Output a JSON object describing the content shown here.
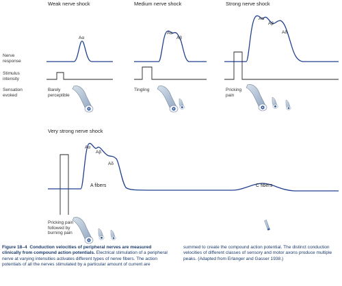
{
  "panels": [
    {
      "title": "Weak nerve shock",
      "sensation": [
        "Barely",
        "perceptible"
      ],
      "peaks": [
        "Aα"
      ]
    },
    {
      "title": "Medium nerve shock",
      "sensation": [
        "Tingling"
      ],
      "peaks": [
        "Aα",
        "Aβ"
      ]
    },
    {
      "title": "Strong nerve shock",
      "sensation": [
        "Pricking",
        "pain"
      ],
      "peaks": [
        "Aα",
        "Aβ",
        "Aδ"
      ]
    }
  ],
  "row_labels": {
    "nerve_response": [
      "Nerve",
      "response"
    ],
    "stimulus_intensity": [
      "Stimulus",
      "intensity"
    ],
    "sensation_evoked": [
      "Sensation",
      "evoked"
    ]
  },
  "bottom_panel": {
    "title": "Very strong nerve shock",
    "peaks": [
      "Aα",
      "Aβ",
      "Aδ"
    ],
    "a_fibers": "A fibers",
    "c_fibers": "C fibers",
    "sensation": [
      "Pricking pain",
      "followed by",
      "burning pain"
    ]
  },
  "caption": {
    "figure": "Figure 18–4",
    "bold": "Conduction velocities of peripheral nerves are measured clinically from compound action potentials.",
    "left_body": "Electrical stimulation of a peripheral nerve at varying intensities activates different types of nerve fibers. The action potentials of all the nerves stimulated by a particular amount of current are",
    "right_body": "summed to create the compound action potential. The distinct conduction velocities of different classes of sensory and motor axons produce multiple peaks. (Adapted from Erlanger and Gasser 1938.)"
  },
  "colors": {
    "trace": "#1f3f8f",
    "baseline": "#222222",
    "nerve": "#a9b9cc",
    "caption": "#1b3a6b"
  }
}
